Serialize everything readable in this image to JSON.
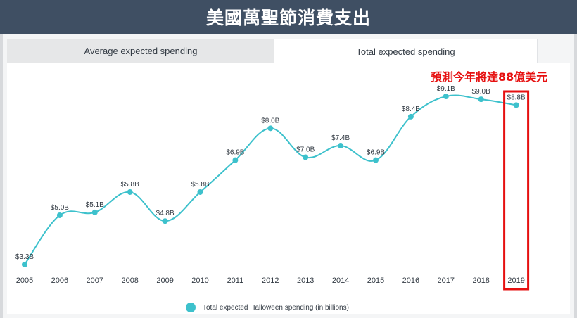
{
  "header": {
    "title": "美國萬聖節消費支出"
  },
  "tabs": [
    {
      "label": "Average expected spending",
      "active": false
    },
    {
      "label": "Total expected spending",
      "active": true
    }
  ],
  "annotation": {
    "text": "預測今年將達88億美元",
    "color": "#e61010"
  },
  "legend": {
    "label": "Total expected Halloween spending (in billions)"
  },
  "colors": {
    "series": "#3dc1cc",
    "highlight": "#e61010",
    "header_bg": "#3f4f63"
  },
  "chart_data": {
    "type": "line",
    "x": [
      "2005",
      "2006",
      "2007",
      "2008",
      "2009",
      "2010",
      "2011",
      "2012",
      "2013",
      "2014",
      "2015",
      "2016",
      "2017",
      "2018",
      "2019"
    ],
    "series": [
      {
        "name": "Total expected Halloween spending (in billions)",
        "values": [
          3.3,
          5.0,
          5.1,
          5.8,
          4.8,
          5.8,
          6.9,
          8.0,
          7.0,
          7.4,
          6.9,
          8.4,
          9.1,
          9.0,
          8.8
        ],
        "labels": [
          "$3.3B",
          "$5.0B",
          "$5.1B",
          "$5.8B",
          "$4.8B",
          "$5.8B",
          "$6.9B",
          "$8.0B",
          "$7.0B",
          "$7.4B",
          "$6.9B",
          "$8.4B",
          "$9.1B",
          "$9.0B",
          "$8.8B"
        ]
      }
    ],
    "highlighted_category": "2019",
    "smooth": true,
    "grid": false,
    "legend_position": "bottom"
  }
}
